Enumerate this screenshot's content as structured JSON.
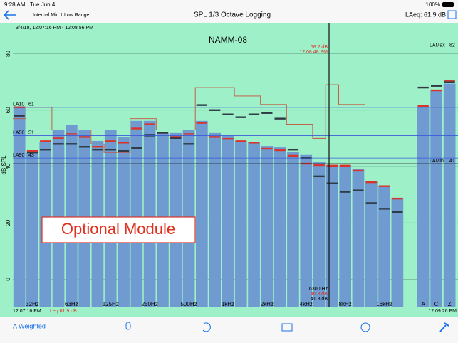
{
  "status_bar": {
    "time": "9:28 AM",
    "date": "Tue Jun 4",
    "battery": "100%"
  },
  "nav": {
    "input": "Internal Mic 1 Low Range",
    "title": "SPL 1/3 Octave Logging",
    "laeq": "LAeq: 61.9 dB"
  },
  "chart_data": {
    "type": "bar",
    "title": "NAMM-08",
    "subtitle": "3/4/18, 12:07:16 PM - 12:08:56 PM",
    "y_label": "dB SPL",
    "ylim": [
      -10,
      91
    ],
    "yticks": [
      0,
      20,
      40,
      60,
      80
    ],
    "categories": [
      null,
      "32Hz",
      null,
      null,
      "63Hz",
      null,
      null,
      "125Hz",
      null,
      null,
      "250Hz",
      null,
      null,
      "500Hz",
      null,
      null,
      "1kHz",
      null,
      null,
      "2kHz",
      null,
      null,
      "4kHz",
      null,
      null,
      "8kHz",
      null,
      null,
      "16kHz",
      null,
      "A",
      "C",
      "Z"
    ],
    "series": [
      {
        "style": "bar",
        "color": "#6f9bd1",
        "values": [
          61.3,
          44.8,
          48.6,
          52.9,
          54.7,
          52.9,
          49.1,
          52.9,
          50.4,
          56.2,
          56.2,
          51.9,
          51.9,
          52.9,
          56.2,
          51.9,
          50.9,
          49.1,
          48.6,
          47.3,
          46.8,
          45.3,
          44.1,
          41.5,
          40.5,
          40.5,
          39.2,
          34.7,
          32.9,
          28.9,
          61.3,
          67.1,
          69.4
        ]
      },
      {
        "style": "tick",
        "color": "#d9342b",
        "values": [
          61,
          45.5,
          49,
          50,
          51.5,
          50.5,
          47,
          49,
          48.5,
          53.5,
          55,
          52,
          50.5,
          51.5,
          55.5,
          50.5,
          49.8,
          49,
          48.5,
          46.3,
          45.8,
          43.8,
          41,
          40.5,
          40.3,
          40.3,
          38.5,
          34.4,
          33,
          28.6,
          61.5,
          67,
          70.5
        ]
      },
      {
        "style": "tick",
        "color": "#2f3b45",
        "values": [
          58,
          45,
          46,
          48,
          48,
          47,
          46,
          46,
          45.5,
          46.5,
          51,
          52,
          50,
          48,
          61.8,
          60,
          58.5,
          57.5,
          58.5,
          59,
          57,
          46,
          43,
          36.5,
          34,
          31,
          31.5,
          27,
          25,
          23.8,
          68,
          68.6,
          69.9
        ]
      },
      {
        "style": "step",
        "color": "#c8503a",
        "values": [
          57,
          61,
          61,
          53,
          53,
          53,
          48,
          45,
          45,
          57,
          57,
          53,
          53,
          53,
          68,
          68,
          68,
          65,
          65,
          62,
          62,
          55,
          55,
          50,
          69,
          62,
          62,
          null,
          null,
          null,
          null,
          null,
          null
        ]
      }
    ],
    "reference_lines": [
      {
        "name": "LA10",
        "value": 61,
        "color": "#3b5bd9",
        "side": "left"
      },
      {
        "name": "LA50",
        "value": 51,
        "color": "#3b5bd9",
        "side": "left"
      },
      {
        "name": "LA90",
        "value": 43,
        "color": "#3b5bd9",
        "side": "left"
      },
      {
        "name": "LAMax",
        "value": 82,
        "color": "#3b5bd9",
        "side": "right"
      },
      {
        "name": "LAMin",
        "value": 41,
        "color": "#222222",
        "side": "right"
      }
    ],
    "cursor": {
      "top_level": "68.2 dB",
      "top_time": "12:08:48 PM",
      "frequency": "6300 Hz",
      "max": "46.8 dB",
      "min": "41.3 dB"
    },
    "time_start": "12:07:16 PM",
    "time_end": "12:09:26 PM",
    "leq": "Leq 61.9 dB"
  },
  "overlay": "Optional Module",
  "toolbar": {
    "weighting": "A Weighted"
  }
}
